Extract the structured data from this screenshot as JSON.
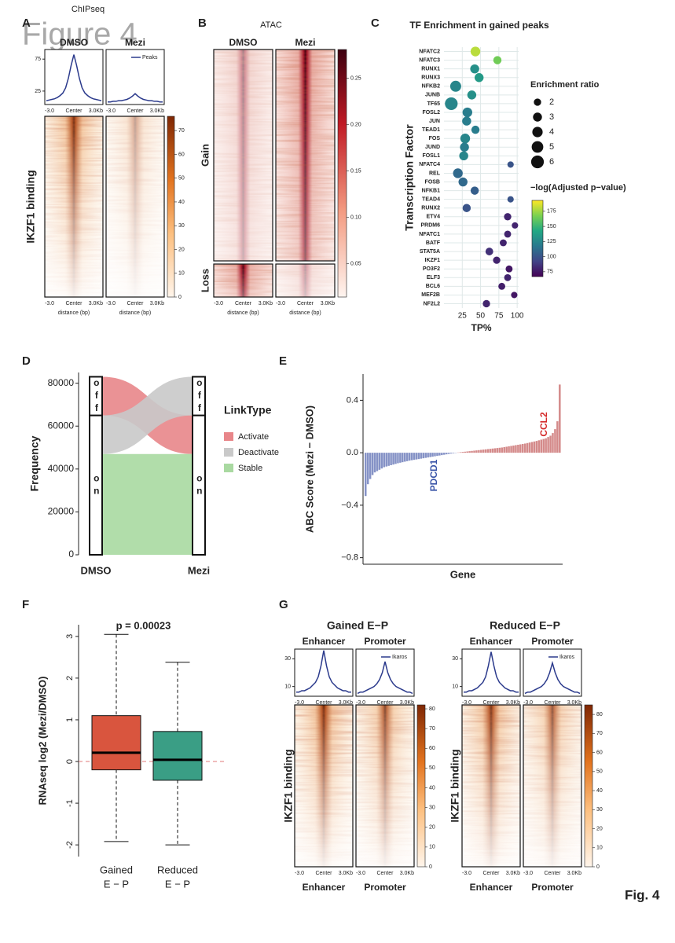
{
  "figure_watermark": "Figure 4",
  "figure_footer": "Fig. 4",
  "chart_data": [
    {
      "panel": "A",
      "type": "profile_heatmap",
      "title": "ChIPseq",
      "ylabel": "IKZF1 binding",
      "xlabel": "distance (bp)",
      "profile": {
        "x_labels": [
          "-3.0",
          "Center",
          "3.0Kb"
        ],
        "ylim": [
          4,
          90
        ],
        "yticks": [
          25,
          75
        ],
        "legend": "Peaks",
        "color": "#2b3a8c"
      },
      "groups": [
        {
          "columns": [
            {
              "name": "DMSO",
              "values": [
                10,
                11,
                12,
                13,
                15,
                18,
                22,
                30,
                45,
                65,
                82,
                65,
                45,
                30,
                22,
                18,
                15,
                13,
                12,
                11,
                10
              ]
            },
            {
              "name": "Mezi",
              "values": [
                8,
                8,
                9,
                9,
                10,
                10,
                11,
                12,
                14,
                17,
                21,
                17,
                14,
                12,
                11,
                10,
                10,
                9,
                9,
                8,
                8
              ]
            }
          ],
          "colorbar": {
            "lim": [
              0,
              76
            ],
            "ticks": [
              0,
              10,
              20,
              30,
              40,
              50,
              60,
              70
            ]
          }
        }
      ]
    },
    {
      "panel": "B",
      "type": "heatmap",
      "title": "ATAC",
      "columns": [
        "DMSO",
        "Mezi"
      ],
      "rows": [
        "Gain",
        "Loss"
      ],
      "x_labels": [
        "-3.0",
        "Center",
        "3.0Kb"
      ],
      "xlabel": "distance (bp)",
      "colorbar": {
        "lim": [
          0.014,
          0.281
        ],
        "ticks": [
          0.05,
          {
            "value": 0.1,
            "label": "0.10"
          },
          0.15,
          {
            "value": 0.2,
            "label": "0.20"
          },
          0.25
        ]
      }
    },
    {
      "panel": "C",
      "type": "dot",
      "title": "TF Enrichment in gained peaks",
      "ylabel": "Transcription Factor",
      "xlabel": "TP%",
      "categories": [
        "NFATC2",
        "NFATC3",
        "RUNX1",
        "RUNX3",
        "NFKB2",
        "JUNB",
        "TF65",
        "FOSL2",
        "JUN",
        "TEAD1",
        "FOS",
        "JUND",
        "FOSL1",
        "NFATC4",
        "REL",
        "FOSB",
        "NFKB1",
        "TEAD4",
        "RUNX2",
        "ETV4",
        "PRDM6",
        "NFATC1",
        "BATF",
        "STAT5A",
        "IKZF1",
        "PO3F2",
        "ELF3",
        "BCL6",
        "MEF2B",
        "NF2L2"
      ],
      "x": [
        43,
        73,
        42,
        48,
        16,
        38,
        10,
        32,
        31,
        43,
        29,
        28,
        27,
        91,
        19,
        26,
        42,
        91,
        31,
        87,
        97,
        87,
        81,
        62,
        72,
        89,
        87,
        79,
        96,
        58
      ],
      "size": [
        3.5,
        2.5,
        3,
        3,
        4.5,
        3,
        6,
        3.5,
        3,
        2.5,
        3.5,
        3,
        3,
        1.5,
        3.5,
        3,
        2.5,
        1.5,
        2.5,
        2,
        1.5,
        1.8,
        1.8,
        2.2,
        2,
        1.8,
        1.8,
        1.8,
        1.5,
        2
      ],
      "color_value": [
        180,
        165,
        130,
        135,
        125,
        130,
        125,
        120,
        120,
        120,
        125,
        120,
        125,
        100,
        110,
        110,
        105,
        100,
        100,
        80,
        80,
        80,
        80,
        85,
        80,
        75,
        80,
        78,
        75,
        80
      ],
      "xlim": [
        0,
        102
      ],
      "xticks": [
        25,
        50,
        75,
        100
      ],
      "grid": true,
      "size_legend": {
        "title": "Enrichment ratio",
        "values": [
          2,
          3,
          4,
          5,
          6
        ]
      },
      "color_legend": {
        "title": "−log(Adjusted p−value)",
        "lim": [
          67,
          193
        ],
        "ticks": [
          75,
          100,
          125,
          150,
          175
        ]
      }
    },
    {
      "panel": "D",
      "type": "alluvial",
      "ylabel": "Frequency",
      "stages": [
        "DMSO",
        "Mezi"
      ],
      "states": [
        "on",
        "off"
      ],
      "legend_title": "LinkType",
      "flows": [
        {
          "name": "Activate",
          "color": "#e8868a",
          "from": "off",
          "to": "on",
          "value": 18000
        },
        {
          "name": "Deactivate",
          "color": "#c9c9c9",
          "from": "on",
          "to": "off",
          "value": 18000
        },
        {
          "name": "Stable",
          "color": "#a9d9a1",
          "from": "on",
          "to": "on",
          "value": 47000
        }
      ],
      "ylim": [
        0,
        85000
      ],
      "yticks": [
        0,
        20000,
        40000,
        60000,
        80000
      ]
    },
    {
      "panel": "E",
      "type": "bar",
      "ylabel": "ABC Score (Mezi − DMSO)",
      "xlabel": "Gene",
      "values": [
        -0.33,
        -0.24,
        -0.2,
        -0.17,
        -0.15,
        -0.14,
        -0.13,
        -0.12,
        -0.11,
        -0.105,
        -0.1,
        -0.095,
        -0.09,
        -0.085,
        -0.08,
        -0.076,
        -0.072,
        -0.068,
        -0.064,
        -0.06,
        -0.057,
        -0.054,
        -0.051,
        -0.048,
        -0.045,
        -0.042,
        -0.039,
        -0.036,
        -0.033,
        -0.03,
        -0.027,
        -0.024,
        -0.021,
        -0.018,
        -0.015,
        -0.012,
        -0.009,
        -0.006,
        -0.004,
        -0.002,
        0.002,
        0.004,
        0.006,
        0.008,
        0.01,
        0.012,
        0.014,
        0.016,
        0.018,
        0.02,
        0.022,
        0.024,
        0.026,
        0.028,
        0.03,
        0.032,
        0.034,
        0.036,
        0.038,
        0.04,
        0.043,
        0.046,
        0.049,
        0.052,
        0.055,
        0.058,
        0.061,
        0.064,
        0.067,
        0.07,
        0.074,
        0.078,
        0.082,
        0.086,
        0.09,
        0.095,
        0.1,
        0.105,
        0.11,
        0.12,
        0.13,
        0.15,
        0.18,
        0.24,
        0.52
      ],
      "colors": {
        "negative": "#8592c6",
        "positive": "#d48a8a"
      },
      "ylim": [
        -0.85,
        0.6
      ],
      "yticks": [
        {
          "value": -0.8,
          "label": "−0.8"
        },
        {
          "value": -0.4,
          "label": "−0.4"
        },
        {
          "value": 0,
          "label": "0.0"
        },
        0.4
      ],
      "annotations": [
        {
          "text": "PDCD1",
          "color": "#3a55a8"
        },
        {
          "text": "CCL2",
          "color": "#d42a2a"
        }
      ]
    },
    {
      "panel": "F",
      "type": "box",
      "title": "p = 0.00023",
      "ylabel": "RNAseq log2 (Mezi/DMSO)",
      "categories": [
        "Gained",
        "Reduced"
      ],
      "category_sublabels": [
        "E − P",
        "E − P"
      ],
      "boxes": [
        {
          "whislo": -1.92,
          "q1": -0.2,
          "med": 0.21,
          "q3": 1.1,
          "whishi": 3.05
        },
        {
          "whislo": -2.0,
          "q1": -0.45,
          "med": 0.04,
          "q3": 0.72,
          "whishi": 2.38
        }
      ],
      "colors": [
        "#d9553e",
        "#3a9e85"
      ],
      "hline": 0,
      "ylim": [
        -2.28,
        3.28
      ],
      "yticks": [
        -2,
        -1,
        0,
        1,
        2,
        3
      ]
    },
    {
      "panel": "G",
      "type": "profile_heatmap",
      "ylabel": "IKZF1 binding",
      "profile": {
        "x_labels": [
          "-3.0",
          "Center",
          "3.0Kb"
        ],
        "ylim": [
          3,
          37
        ],
        "yticks": [
          10,
          30
        ],
        "legend": "Ikaros",
        "color": "#2b3a8c"
      },
      "groups": [
        {
          "title": "Gained E−P",
          "columns": [
            {
              "name": "Enhancer",
              "values": [
                6,
                6,
                7,
                7,
                8,
                9,
                11,
                13,
                17,
                25,
                36,
                25,
                17,
                13,
                11,
                9,
                8,
                7,
                7,
                6,
                6
              ]
            },
            {
              "name": "Promoter",
              "values": [
                5,
                6,
                6,
                7,
                8,
                9,
                10,
                12,
                15,
                20,
                28,
                20,
                15,
                12,
                10,
                9,
                8,
                7,
                6,
                6,
                5
              ]
            }
          ],
          "colorbar": {
            "lim": [
              0,
              82
            ],
            "ticks": [
              0,
              10,
              20,
              30,
              40,
              50,
              60,
              70,
              80
            ]
          }
        },
        {
          "title": "Reduced E−P",
          "columns": [
            {
              "name": "Enhancer",
              "values": [
                6,
                6,
                7,
                7,
                8,
                9,
                11,
                13,
                17,
                25,
                35,
                25,
                17,
                13,
                11,
                9,
                8,
                7,
                7,
                6,
                6
              ]
            },
            {
              "name": "Promoter",
              "values": [
                5,
                6,
                6,
                7,
                8,
                9,
                10,
                12,
                15,
                20,
                27,
                20,
                15,
                12,
                10,
                9,
                8,
                7,
                6,
                6,
                5
              ]
            }
          ],
          "colorbar": {
            "lim": [
              0,
              85
            ],
            "ticks": [
              0,
              10,
              20,
              30,
              40,
              50,
              60,
              70,
              80
            ]
          }
        }
      ]
    }
  ]
}
